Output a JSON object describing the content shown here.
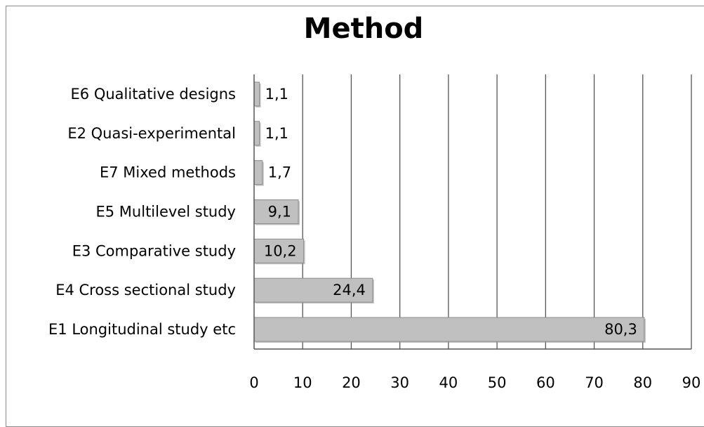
{
  "chart_data": {
    "type": "bar",
    "orientation": "horizontal",
    "title": "Method",
    "categories": [
      "E6 Qualitative designs",
      "E2 Quasi-experimental",
      "E7 Mixed methods",
      "E5 Multilevel study",
      "E3 Comparative study",
      "E4  Cross sectional study",
      "E1 Longitudinal study etc"
    ],
    "values": [
      1.1,
      1.1,
      1.7,
      9.1,
      10.2,
      24.4,
      80.3
    ],
    "data_labels": [
      "1,1",
      "1,1",
      "1,7",
      "9,1",
      "10,2",
      "24,4",
      "80,3"
    ],
    "xlim": [
      0,
      90
    ],
    "x_ticks": [
      "0",
      "10",
      "20",
      "30",
      "40",
      "50",
      "60",
      "70",
      "80",
      "90"
    ],
    "xlabel": "",
    "ylabel": "",
    "grid": "vertical",
    "legend": "none",
    "bar_color": "#c0c0c0",
    "bar_edge_color": "#8c8c8c",
    "grid_color": "#555555"
  }
}
